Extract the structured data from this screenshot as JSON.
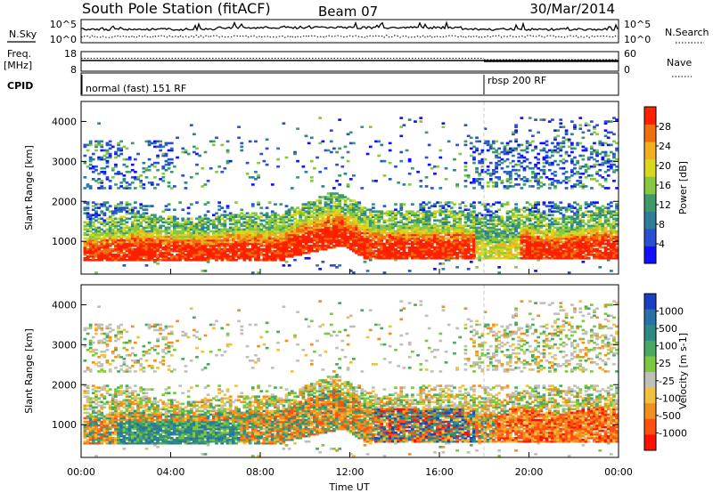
{
  "header": {
    "station": "South Pole Station (fitACF)",
    "beam": "Beam 07",
    "date": "30/Mar/2014"
  },
  "top_panels": {
    "nsky_label": "N.Sky",
    "nsearch_label": "N.Search",
    "nsky_ticks": [
      "10^5",
      "10^0"
    ],
    "nsearch_ticks": [
      "10^5",
      "10^0"
    ],
    "freq_label_1": "Freq.",
    "freq_label_2": "[MHz]",
    "freq_ticks": [
      "18",
      "8"
    ],
    "nave_label": "Nave",
    "nave_ticks": [
      "60",
      "0"
    ],
    "cpid_label": "CPID",
    "cpid_segments": [
      {
        "label": "normal (fast) 151 RF",
        "start_hour": 0
      },
      {
        "label": "rbsp 200 RF",
        "start_hour": 18
      }
    ]
  },
  "chart_data": [
    {
      "type": "heatmap",
      "name": "power",
      "ylabel": "Slant Range [km]",
      "ylim": [
        180,
        4500
      ],
      "yticks": [
        1000,
        2000,
        3000,
        4000
      ],
      "colorbar_label": "Power [dB]",
      "colorbar_ticks": [
        "4",
        "8",
        "12",
        "16",
        "20",
        "24",
        "28"
      ],
      "colorbar_colors": [
        "#1010ff",
        "#2a4fd0",
        "#2e7d9a",
        "#3f9a6a",
        "#88c840",
        "#d8d820",
        "#f0b020",
        "#f07010",
        "#ff2000"
      ],
      "xlim_hours": [
        0,
        24
      ]
    },
    {
      "type": "heatmap",
      "name": "velocity",
      "ylabel": "Slant Range [km]",
      "ylim": [
        180,
        4500
      ],
      "yticks": [
        1000,
        2000,
        3000,
        4000
      ],
      "colorbar_label": "Velocity [m s-1]",
      "colorbar_ticks": [
        "1000",
        "500",
        "100",
        "25",
        "-25",
        "-100",
        "-500",
        "-1000"
      ],
      "colorbar_colors": [
        "#1840c0",
        "#2a70a8",
        "#2e8a80",
        "#4aa860",
        "#7cc840",
        "#c0c0b8",
        "#f0c040",
        "#f09020",
        "#ff5010",
        "#ff1000"
      ],
      "xlim_hours": [
        0,
        24
      ],
      "xticks": [
        "00:00",
        "04:00",
        "08:00",
        "12:00",
        "16:00",
        "20:00",
        "00:00"
      ],
      "xlabel": "Time UT"
    }
  ]
}
